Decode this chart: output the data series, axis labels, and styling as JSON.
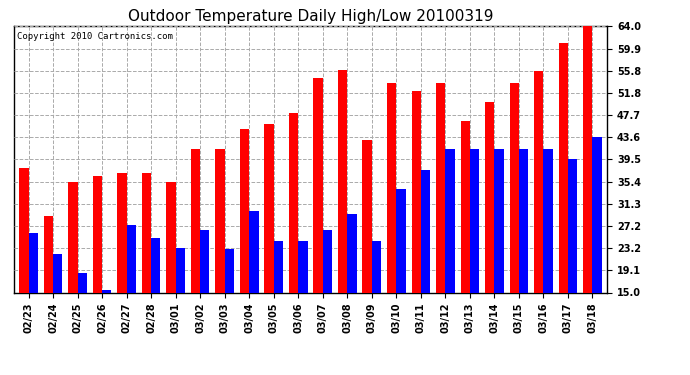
{
  "title": "Outdoor Temperature Daily High/Low 20100319",
  "copyright": "Copyright 2010 Cartronics.com",
  "dates": [
    "02/23",
    "02/24",
    "02/25",
    "02/26",
    "02/27",
    "02/28",
    "03/01",
    "03/02",
    "03/03",
    "03/04",
    "03/05",
    "03/06",
    "03/07",
    "03/08",
    "03/09",
    "03/10",
    "03/11",
    "03/12",
    "03/13",
    "03/14",
    "03/15",
    "03/16",
    "03/17",
    "03/18"
  ],
  "highs": [
    38.0,
    29.0,
    35.4,
    36.5,
    37.0,
    37.0,
    35.4,
    41.5,
    41.5,
    45.0,
    46.0,
    48.0,
    54.5,
    56.0,
    43.0,
    53.5,
    52.0,
    53.5,
    46.5,
    50.0,
    53.5,
    55.8,
    61.0,
    64.0
  ],
  "lows": [
    26.0,
    22.0,
    18.5,
    15.5,
    27.5,
    25.0,
    23.2,
    26.5,
    23.0,
    30.0,
    24.5,
    24.5,
    26.5,
    29.5,
    24.5,
    34.0,
    37.5,
    41.5,
    41.5,
    41.5,
    41.5,
    41.5,
    39.5,
    43.6
  ],
  "high_color": "#ff0000",
  "low_color": "#0000ff",
  "bg_color": "#ffffff",
  "grid_color": "#aaaaaa",
  "yticks": [
    15.0,
    19.1,
    23.2,
    27.2,
    31.3,
    35.4,
    39.5,
    43.6,
    47.7,
    51.8,
    55.8,
    59.9,
    64.0
  ],
  "ymin": 15.0,
  "ymax": 64.0,
  "bar_width": 0.38,
  "title_fontsize": 11,
  "tick_fontsize": 7,
  "copyright_fontsize": 6.5
}
